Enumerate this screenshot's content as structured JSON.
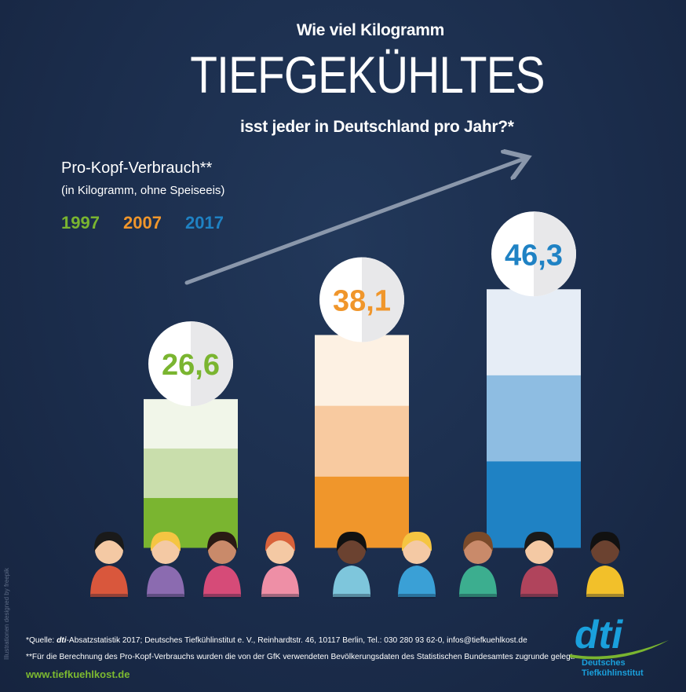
{
  "header": {
    "line1": "Wie viel Kilogramm",
    "line2": "TIEFGEKÜHLTES",
    "line3": "isst jeder in Deutschland pro Jahr?*"
  },
  "legend": {
    "title": "Pro-Kopf-Verbrauch**",
    "subtitle": "(in Kilogramm, ohne Speiseeis)",
    "years": [
      {
        "label": "1997",
        "color": "#7ab530"
      },
      {
        "label": "2007",
        "color": "#f0962b"
      },
      {
        "label": "2017",
        "color": "#1f82c4"
      }
    ]
  },
  "chart_data": {
    "type": "bar",
    "categories": [
      "1997",
      "2007",
      "2017"
    ],
    "values": [
      26.6,
      38.1,
      46.3
    ],
    "value_labels": [
      "26,6",
      "38,1",
      "46,3"
    ],
    "unit": "kg",
    "colors": [
      "#7ab530",
      "#f0962b",
      "#1f82c4"
    ],
    "trend_arrow": true
  },
  "footer": {
    "source_prefix": "*Quelle: ",
    "source_brand": "dti",
    "source_rest": "-Absatzstatistik 2017; Deutsches Tiefkühlinstitut e. V., Reinhardtstr. 46, 10117 Berlin, Tel.: 030 280 93 62-0, infos@tiefkuehlkost.de",
    "note": "**Für die Berechnung des Pro-Kopf-Verbrauchs wurden die von der GfK verwendeten Bevölkerungsdaten des Statistischen Bundesamtes zugrunde gelegt.",
    "url": "www.tiefkuehlkost.de",
    "side_credit": "Illustrationen designed by freepik"
  },
  "logo": {
    "mark": "dti",
    "name_line1": "Deutsches",
    "name_line2": "Tiefkühlinstitut"
  },
  "people_colors": [
    "#d9573c",
    "#8b6bb0",
    "#d64b78",
    "#ee8fa6",
    "#7ec6dc",
    "#3aa0d6",
    "#3cae8f",
    "#b0445c",
    "#f2c02a"
  ]
}
